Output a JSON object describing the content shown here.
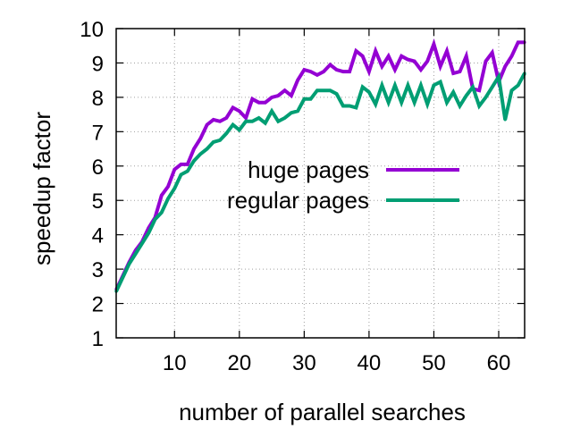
{
  "chart_data": {
    "type": "line",
    "title": "",
    "xlabel": "number of parallel searches",
    "ylabel": "speedup factor",
    "xlim": [
      1,
      64
    ],
    "ylim": [
      1,
      10
    ],
    "xticks": [
      10,
      20,
      30,
      40,
      50,
      60
    ],
    "yticks": [
      1,
      2,
      3,
      4,
      5,
      6,
      7,
      8,
      9,
      10
    ],
    "grid": true,
    "legend_position": "center-right",
    "x": [
      1,
      2,
      3,
      4,
      5,
      6,
      7,
      8,
      9,
      10,
      11,
      12,
      13,
      14,
      15,
      16,
      17,
      18,
      19,
      20,
      21,
      22,
      23,
      24,
      25,
      26,
      27,
      28,
      29,
      30,
      31,
      32,
      33,
      34,
      35,
      36,
      37,
      38,
      39,
      40,
      41,
      42,
      43,
      44,
      45,
      46,
      47,
      48,
      49,
      50,
      51,
      52,
      53,
      54,
      55,
      56,
      57,
      58,
      59,
      60,
      61,
      62,
      63,
      64
    ],
    "series": [
      {
        "name": "huge pages",
        "color": "#9400d3",
        "values": [
          2.4,
          2.8,
          3.2,
          3.55,
          3.8,
          4.2,
          4.5,
          5.15,
          5.4,
          5.9,
          6.05,
          6.05,
          6.5,
          6.8,
          7.2,
          7.35,
          7.3,
          7.4,
          7.7,
          7.6,
          7.4,
          7.95,
          7.85,
          7.85,
          8.0,
          8.05,
          8.2,
          8.05,
          8.5,
          8.8,
          8.75,
          8.65,
          8.75,
          8.95,
          8.8,
          8.75,
          8.75,
          9.35,
          9.2,
          8.75,
          9.35,
          8.9,
          9.2,
          8.8,
          9.2,
          9.1,
          9.05,
          8.8,
          9.05,
          9.55,
          8.9,
          9.35,
          8.7,
          8.75,
          9.2,
          8.25,
          8.2,
          9.05,
          9.3,
          8.45,
          8.9,
          9.2,
          9.6,
          9.6
        ]
      },
      {
        "name": "regular pages",
        "color": "#009e73",
        "values": [
          2.35,
          2.75,
          3.15,
          3.45,
          3.75,
          4.05,
          4.45,
          4.65,
          5.05,
          5.35,
          5.75,
          5.85,
          6.15,
          6.35,
          6.5,
          6.7,
          6.75,
          6.95,
          7.2,
          7.05,
          7.3,
          7.3,
          7.4,
          7.25,
          7.6,
          7.3,
          7.4,
          7.55,
          7.6,
          7.95,
          7.95,
          8.2,
          8.2,
          8.2,
          8.1,
          7.75,
          7.75,
          7.7,
          8.3,
          8.15,
          7.8,
          8.35,
          7.85,
          8.35,
          7.85,
          8.35,
          7.85,
          8.35,
          7.8,
          8.35,
          8.45,
          7.85,
          8.15,
          7.75,
          8.05,
          8.3,
          7.75,
          8.0,
          8.3,
          8.6,
          7.35,
          8.2,
          8.35,
          8.7
        ]
      }
    ]
  }
}
